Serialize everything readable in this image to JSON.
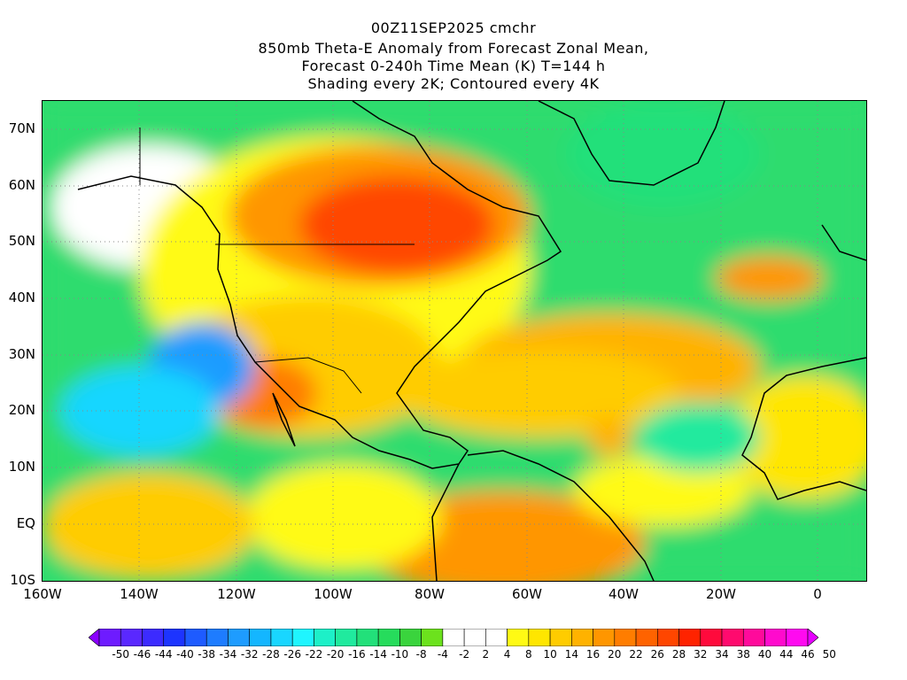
{
  "titles": [
    "00Z11SEP2025 cmchr",
    "850mb Theta-E Anomaly from Forecast Zonal Mean,",
    "Forecast 0-240h Time Mean (K) T=144 h",
    "Shading every 2K; Contoured every 4K"
  ],
  "map": {
    "lon_range": [
      -160,
      10
    ],
    "lat_range": [
      -10,
      75
    ],
    "lat_ticks": [
      {
        "value": 70,
        "label": "70N"
      },
      {
        "value": 60,
        "label": "60N"
      },
      {
        "value": 50,
        "label": "50N"
      },
      {
        "value": 40,
        "label": "40N"
      },
      {
        "value": 30,
        "label": "30N"
      },
      {
        "value": 20,
        "label": "20N"
      },
      {
        "value": 10,
        "label": "10N"
      },
      {
        "value": 0,
        "label": "EQ"
      },
      {
        "value": -10,
        "label": "10S"
      }
    ],
    "lon_ticks": [
      {
        "value": -160,
        "label": "160W"
      },
      {
        "value": -140,
        "label": "140W"
      },
      {
        "value": -120,
        "label": "120W"
      },
      {
        "value": -100,
        "label": "100W"
      },
      {
        "value": -80,
        "label": "80W"
      },
      {
        "value": -60,
        "label": "60W"
      },
      {
        "value": -40,
        "label": "40W"
      },
      {
        "value": -20,
        "label": "20W"
      },
      {
        "value": 0,
        "label": "0"
      }
    ]
  },
  "colorbar": {
    "labels": [
      "-50",
      "-46",
      "-44",
      "-40",
      "-38",
      "-34",
      "-32",
      "-28",
      "-26",
      "-22",
      "-20",
      "-16",
      "-14",
      "-10",
      "-8",
      "-4",
      "-2",
      "2",
      "4",
      "8",
      "10",
      "14",
      "16",
      "20",
      "22",
      "26",
      "28",
      "32",
      "34",
      "38",
      "40",
      "44",
      "46",
      "50"
    ],
    "colors": [
      "#8a00ff",
      "#6e1bff",
      "#5a28ff",
      "#3c2bff",
      "#1d34ff",
      "#1e5bff",
      "#1e7cff",
      "#1e9cff",
      "#14b6ff",
      "#19d6ff",
      "#1ff5ff",
      "#1df0c8",
      "#20ea9e",
      "#22e07a",
      "#26dc5c",
      "#3ad43d",
      "#6ce21d",
      "#ffffff",
      "#ffffff",
      "#ffffff",
      "#fffa14",
      "#ffe600",
      "#ffcc00",
      "#ffb200",
      "#ff9600",
      "#ff7d00",
      "#ff6300",
      "#ff4600",
      "#ff2300",
      "#ff0a3c",
      "#ff0a6e",
      "#ff0a9b",
      "#ff0acd",
      "#ff0af0",
      "#e600ff"
    ]
  }
}
